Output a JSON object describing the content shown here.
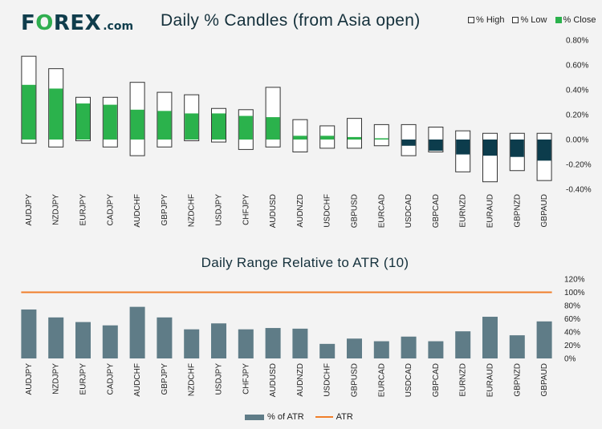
{
  "header": {
    "logo_pre": "F",
    "logo_mark": "O",
    "logo_post": "REX",
    "logo_suffix": ".com",
    "title": "Daily % Candles (from Asia open)"
  },
  "legend_top": {
    "high": "% High",
    "low": "% Low",
    "close": "% Close"
  },
  "legend_bottom": {
    "bar": "% of ATR",
    "line": "ATR"
  },
  "colors": {
    "up": "#2bb24c",
    "down": "#0c3c4c",
    "range": "#ffffff",
    "outline": "#333333",
    "atr_bar": "#5f7c87",
    "atr_line": "#f07e2a"
  },
  "chart_data": [
    {
      "type": "candlestick",
      "title": "Daily % Candles (from Asia open)",
      "unit": "%",
      "ylim": [
        -0.4,
        0.8
      ],
      "yticks": [
        -0.4,
        -0.2,
        0.0,
        0.2,
        0.4,
        0.6,
        0.8
      ],
      "ytick_labels": [
        "-0.40%",
        "-0.20%",
        "0.00%",
        "0.20%",
        "0.40%",
        "0.60%",
        "0.80%"
      ],
      "categories": [
        "AUDJPY",
        "NZDJPY",
        "EURJPY",
        "CADJPY",
        "AUDCHF",
        "GBPJPY",
        "NZDCHF",
        "USDJPY",
        "CHFJPY",
        "AUDUSD",
        "AUDNZD",
        "USDCHF",
        "GBPUSD",
        "EURCAD",
        "USDCAD",
        "GBPCAD",
        "EURNZD",
        "EURAUD",
        "GBPNZD",
        "GBPAUD"
      ],
      "series": [
        {
          "name": "% High",
          "values": [
            0.67,
            0.57,
            0.34,
            0.34,
            0.46,
            0.38,
            0.36,
            0.25,
            0.24,
            0.42,
            0.16,
            0.11,
            0.17,
            0.12,
            0.12,
            0.1,
            0.07,
            0.05,
            0.05,
            0.05
          ]
        },
        {
          "name": "% Low",
          "values": [
            -0.03,
            -0.06,
            -0.01,
            -0.06,
            -0.13,
            -0.06,
            -0.01,
            -0.02,
            -0.08,
            -0.06,
            -0.1,
            -0.07,
            -0.07,
            -0.05,
            -0.13,
            -0.1,
            -0.26,
            -0.34,
            -0.25,
            -0.33
          ]
        },
        {
          "name": "% Close",
          "values": [
            0.44,
            0.41,
            0.29,
            0.28,
            0.24,
            0.23,
            0.21,
            0.21,
            0.19,
            0.18,
            0.03,
            0.03,
            0.02,
            0.01,
            -0.05,
            -0.09,
            -0.12,
            -0.13,
            -0.14,
            -0.17
          ]
        }
      ]
    },
    {
      "type": "bar",
      "title": "Daily Range Relative to ATR (10)",
      "unit": "%",
      "ylim": [
        0,
        120
      ],
      "yticks": [
        0,
        20,
        40,
        60,
        80,
        100,
        120
      ],
      "ytick_labels": [
        "0%",
        "20%",
        "40%",
        "60%",
        "80%",
        "100%",
        "120%"
      ],
      "categories": [
        "AUDJPY",
        "NZDJPY",
        "EURJPY",
        "CADJPY",
        "AUDCHF",
        "GBPJPY",
        "NZDCHF",
        "USDJPY",
        "CHFJPY",
        "AUDUSD",
        "AUDNZD",
        "USDCHF",
        "GBPUSD",
        "EURCAD",
        "USDCAD",
        "GBPCAD",
        "EURNZD",
        "EURAUD",
        "GBPNZD",
        "GBPAUD"
      ],
      "series": [
        {
          "name": "% of ATR",
          "values": [
            74,
            62,
            55,
            50,
            78,
            62,
            44,
            53,
            44,
            46,
            45,
            22,
            30,
            26,
            33,
            26,
            41,
            63,
            35,
            56
          ]
        },
        {
          "name": "ATR",
          "values": [
            100,
            100,
            100,
            100,
            100,
            100,
            100,
            100,
            100,
            100,
            100,
            100,
            100,
            100,
            100,
            100,
            100,
            100,
            100,
            100
          ]
        }
      ]
    }
  ]
}
